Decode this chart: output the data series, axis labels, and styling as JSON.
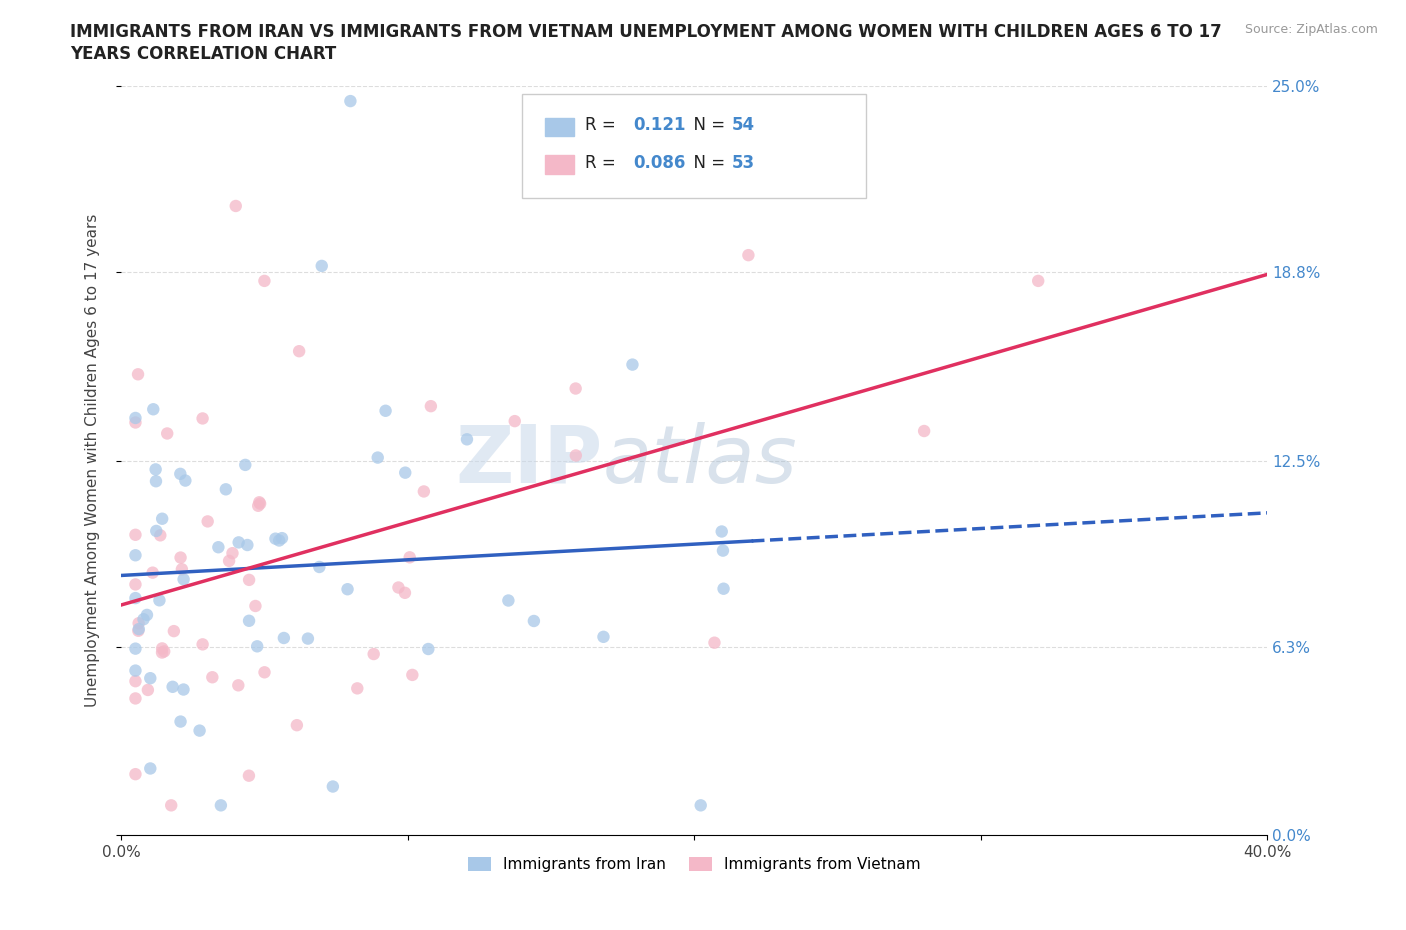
{
  "title_line1": "IMMIGRANTS FROM IRAN VS IMMIGRANTS FROM VIETNAM UNEMPLOYMENT AMONG WOMEN WITH CHILDREN AGES 6 TO 17",
  "title_line2": "YEARS CORRELATION CHART",
  "source": "Source: ZipAtlas.com",
  "ylabel": "Unemployment Among Women with Children Ages 6 to 17 years",
  "xmin": 0.0,
  "xmax": 0.4,
  "ymin": 0.0,
  "ymax": 0.25,
  "yticks": [
    0.0,
    0.063,
    0.125,
    0.188,
    0.25
  ],
  "ytick_labels": [
    "0.0%",
    "6.3%",
    "12.5%",
    "18.8%",
    "25.0%"
  ],
  "xticks": [
    0.0,
    0.1,
    0.2,
    0.3,
    0.4
  ],
  "xtick_labels": [
    "0.0%",
    "",
    "",
    "",
    "40.0%"
  ],
  "iran_color": "#a8c8e8",
  "vietnam_color": "#f4b8c8",
  "iran_line_color": "#3060c0",
  "vietnam_line_color": "#e03060",
  "legend_R_iran": "0.121",
  "legend_N_iran": "54",
  "legend_R_vietnam": "0.086",
  "legend_N_vietnam": "53",
  "watermark_zip": "ZIP",
  "watermark_atlas": "atlas",
  "background_color": "#ffffff",
  "grid_color": "#dddddd",
  "right_tick_color": "#4488cc",
  "title_fontsize": 12,
  "axis_fontsize": 11
}
